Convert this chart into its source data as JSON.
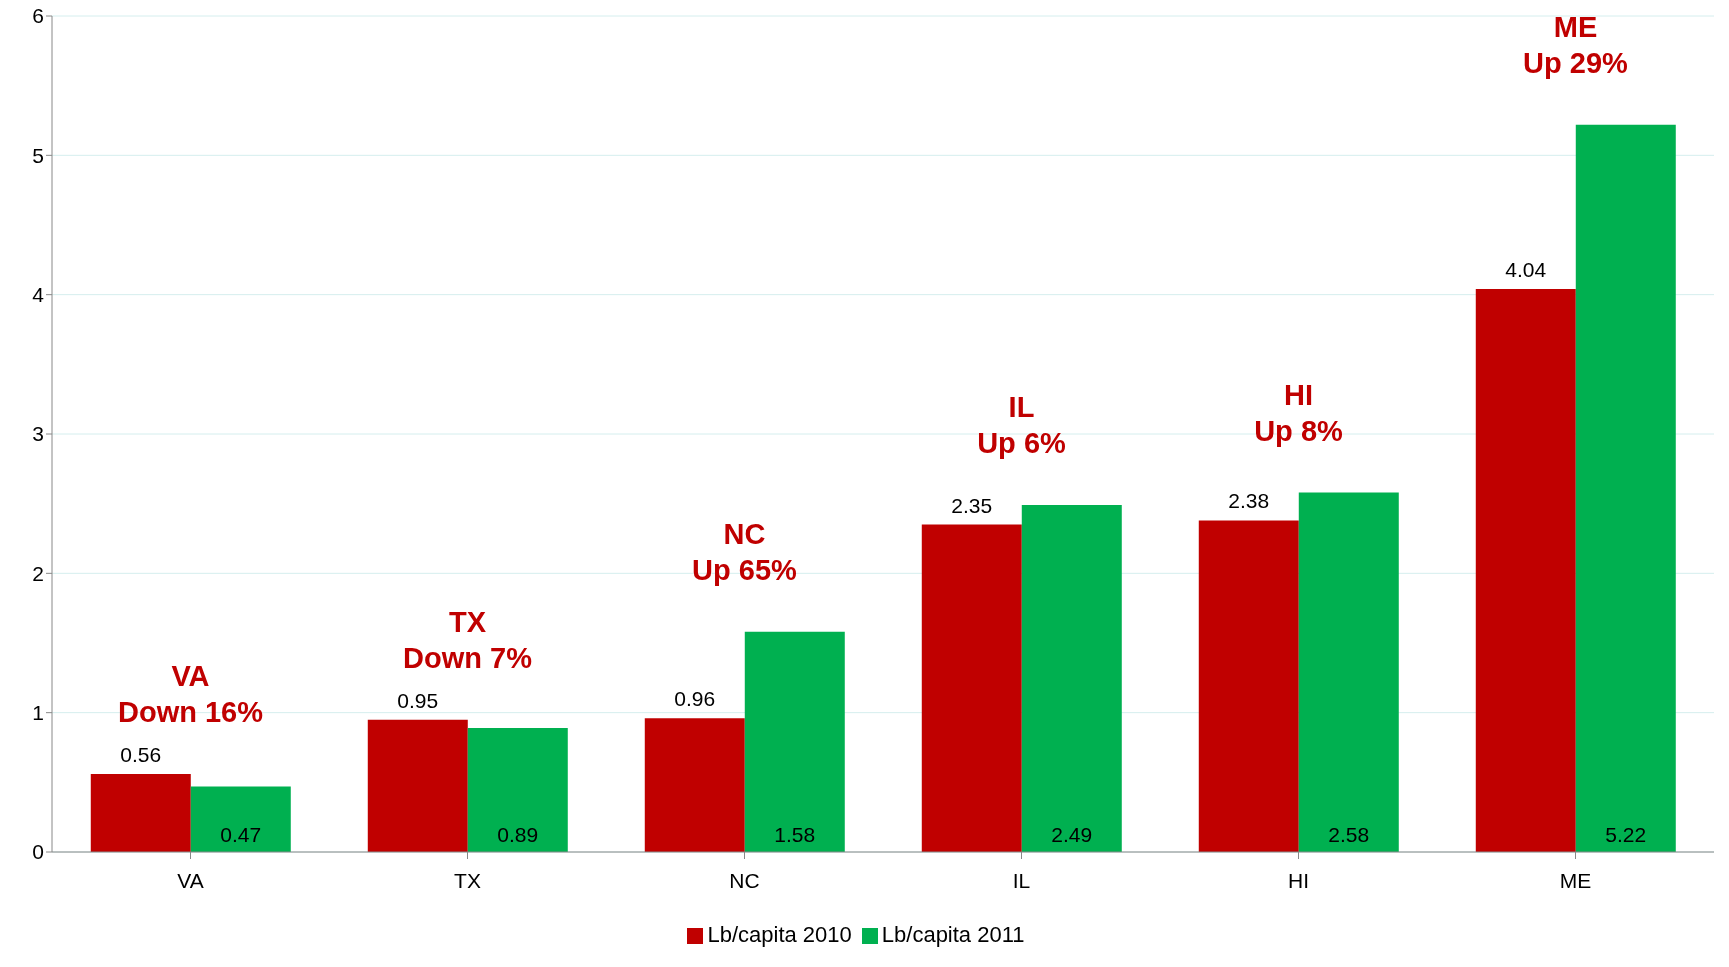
{
  "chart_data": {
    "type": "bar",
    "categories": [
      "VA",
      "TX",
      "NC",
      "IL",
      "HI",
      "ME"
    ],
    "series": [
      {
        "name": "Lb/capita 2010",
        "color": "#c00000",
        "values": [
          0.56,
          0.95,
          0.96,
          2.35,
          2.38,
          4.04
        ]
      },
      {
        "name": "Lb/capita 2011",
        "color": "#00b050",
        "values": [
          0.47,
          0.89,
          1.58,
          2.49,
          2.58,
          5.22
        ]
      }
    ],
    "ylim": [
      0,
      6
    ],
    "yticks": [
      0,
      1,
      2,
      3,
      4,
      5,
      6
    ],
    "grid": "y",
    "legend": "bottom",
    "data_labels": true,
    "annotations": [
      {
        "text": "VA\nDown 16%",
        "x": "VA",
        "y": 0.56
      },
      {
        "text": "TX\nDown 7%",
        "x": "TX",
        "y": 0.95
      },
      {
        "text": "NC\nUp 65%",
        "x": "NC",
        "y": 1.58
      },
      {
        "text": "IL\nUp 6%",
        "x": "IL",
        "y": 2.49
      },
      {
        "text": "HI\nUp 8%",
        "x": "HI",
        "y": 2.58
      },
      {
        "text": "ME\nUp 29%",
        "x": "ME",
        "y": 5.22
      }
    ]
  }
}
